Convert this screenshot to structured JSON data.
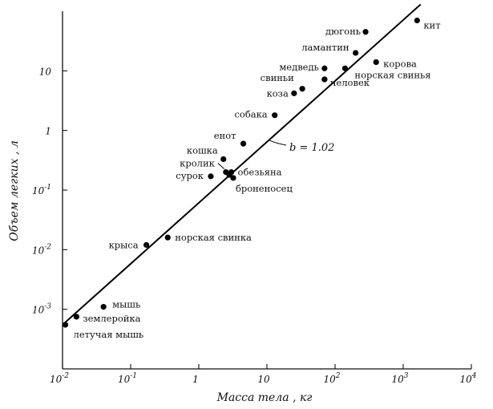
{
  "chart_data": {
    "type": "scatter",
    "title": "",
    "xlabel": "Масса тела , кг",
    "ylabel": "Объем легких , л",
    "x_scale": "log",
    "y_scale": "log",
    "xlim": [
      0.01,
      10000
    ],
    "ylim": [
      0.0001,
      100
    ],
    "x_ticks": [
      {
        "value": 0.01,
        "base": "10",
        "exp": "-2"
      },
      {
        "value": 0.1,
        "base": "10",
        "exp": "-1"
      },
      {
        "value": 1,
        "base": "1",
        "exp": ""
      },
      {
        "value": 10,
        "base": "10",
        "exp": ""
      },
      {
        "value": 100,
        "base": "10",
        "exp": "2"
      },
      {
        "value": 1000,
        "base": "10",
        "exp": "3"
      },
      {
        "value": 10000,
        "base": "10",
        "exp": "4"
      }
    ],
    "y_ticks": [
      {
        "value": 0.001,
        "base": "10",
        "exp": "-3"
      },
      {
        "value": 0.01,
        "base": "10",
        "exp": "-2"
      },
      {
        "value": 0.1,
        "base": "10",
        "exp": "-1"
      },
      {
        "value": 1,
        "base": "1",
        "exp": ""
      },
      {
        "value": 10,
        "base": "10",
        "exp": ""
      }
    ],
    "fit_line": {
      "label": "b = 1.02",
      "slope": 1.02,
      "x1": 0.01,
      "y1": 0.00055,
      "x2": 1800,
      "y2": 130
    },
    "points": [
      {
        "label": "кит",
        "x": 1600,
        "y": 70
      },
      {
        "label": "дюгонь",
        "x": 280,
        "y": 45
      },
      {
        "label": "ламантин",
        "x": 200,
        "y": 20
      },
      {
        "label": "корова",
        "x": 400,
        "y": 14
      },
      {
        "label": "норская свинья",
        "x": 140,
        "y": 11
      },
      {
        "label": "медведь",
        "x": 70,
        "y": 11
      },
      {
        "label": "свиньи",
        "x": 70,
        "y": 7.2
      },
      {
        "label": "человек",
        "x": 70,
        "y": 7.2
      },
      {
        "label": "коза",
        "x": 25,
        "y": 4.2
      },
      {
        "label": "",
        "x": 33,
        "y": 5
      },
      {
        "label": "собака",
        "x": 13,
        "y": 1.8
      },
      {
        "label": "енот",
        "x": 4.5,
        "y": 0.6
      },
      {
        "label": "кошка",
        "x": 2.3,
        "y": 0.33
      },
      {
        "label": "кролик",
        "x": 2.5,
        "y": 0.2
      },
      {
        "label": "обезьяна",
        "x": 3,
        "y": 0.2
      },
      {
        "label": "сурок",
        "x": 1.5,
        "y": 0.17
      },
      {
        "label": "броненосец",
        "x": 3.2,
        "y": 0.16
      },
      {
        "label": "",
        "x": 2.8,
        "y": 0.18
      },
      {
        "label": "крыса",
        "x": 0.17,
        "y": 0.012
      },
      {
        "label": "норская свинка",
        "x": 0.35,
        "y": 0.016
      },
      {
        "label": "мышь",
        "x": 0.04,
        "y": 0.0011
      },
      {
        "label": "землеройка",
        "x": 0.016,
        "y": 0.00075
      },
      {
        "label": "летучая мышь",
        "x": 0.011,
        "y": 0.00055
      }
    ]
  }
}
